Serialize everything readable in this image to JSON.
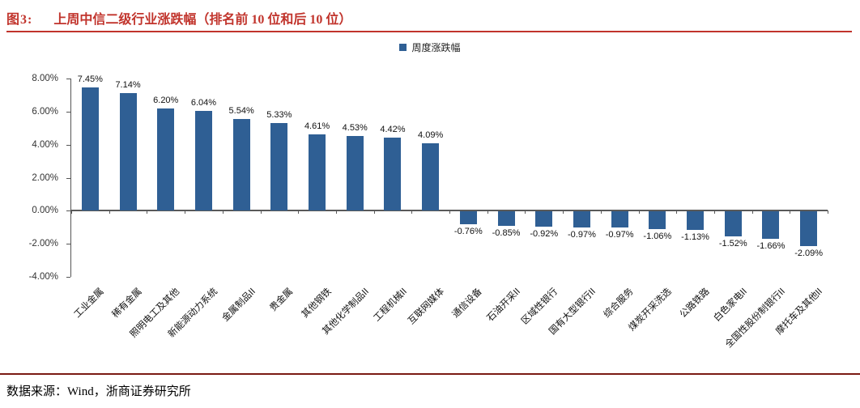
{
  "header": {
    "figure_label": "图3:",
    "title": "上周中信二级行业涨跌幅（排名前 10 位和后 10 位）"
  },
  "legend": {
    "label": "周度涨跌幅"
  },
  "footer": {
    "source_text": "数据来源：Wind，浙商证券研究所"
  },
  "colors": {
    "bar": "#2F5F94",
    "title_red": "#C1342C",
    "footer_line": "#7A1A13",
    "axis": "#595959"
  },
  "chart_data": {
    "type": "bar",
    "title": "上周中信二级行业涨跌幅（排名前 10 位和后 10 位）",
    "legend_entries": [
      "周度涨跌幅"
    ],
    "legend_position": "top-center",
    "grid": false,
    "categories": [
      "工业金属",
      "稀有金属",
      "照明电工及其他",
      "新能源动力系统",
      "金属制品II",
      "贵金属",
      "其他钢铁",
      "其他化学制品II",
      "工程机械II",
      "互联网媒体",
      "通信设备",
      "石油开采II",
      "区域性银行",
      "国有大型银行II",
      "综合服务",
      "煤炭开采洗选",
      "公路铁路",
      "白色家电II",
      "全国性股份制银行II",
      "摩托车及其他II"
    ],
    "values": [
      7.45,
      7.14,
      6.2,
      6.04,
      5.54,
      5.33,
      4.61,
      4.53,
      4.42,
      4.09,
      -0.76,
      -0.85,
      -0.92,
      -0.97,
      -0.97,
      -1.06,
      -1.13,
      -1.52,
      -1.66,
      -2.09
    ],
    "value_labels": [
      "7.45%",
      "7.14%",
      "6.20%",
      "6.04%",
      "5.54%",
      "5.33%",
      "4.61%",
      "4.53%",
      "4.42%",
      "4.09%",
      "-0.76%",
      "-0.85%",
      "-0.92%",
      "-0.97%",
      "-0.97%",
      "-1.06%",
      "-1.13%",
      "-1.52%",
      "-1.66%",
      "-2.09%"
    ],
    "xlabel": "",
    "ylabel": "",
    "ylim": [
      -4,
      8
    ],
    "ytick_step": 2,
    "ytick_labels": [
      "8.00%",
      "6.00%",
      "4.00%",
      "2.00%",
      "0.00%",
      "-2.00%",
      "-4.00%"
    ]
  }
}
